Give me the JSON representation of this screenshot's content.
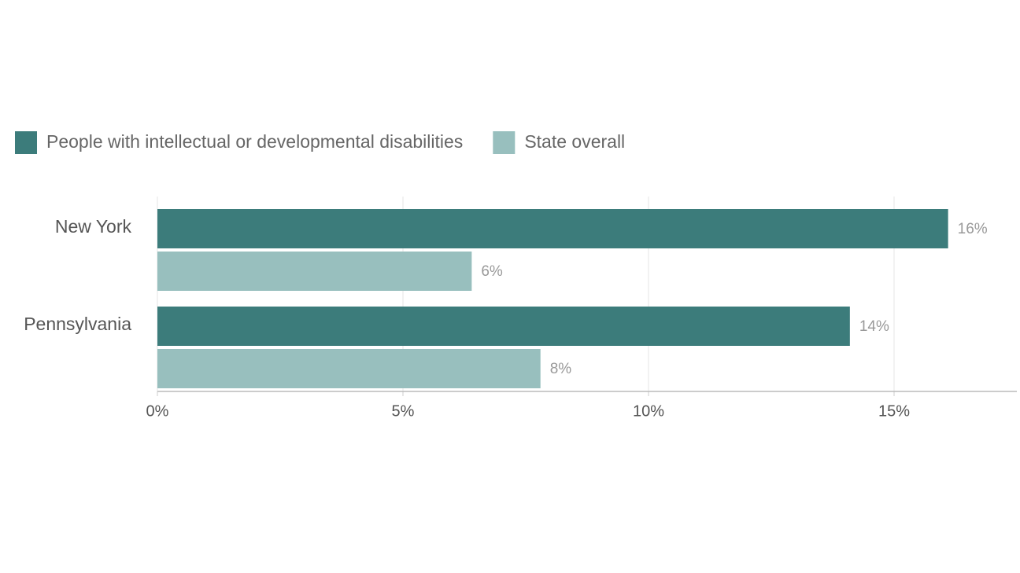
{
  "chart_data": {
    "type": "bar",
    "orientation": "horizontal",
    "categories": [
      "New York",
      "Pennsylvania"
    ],
    "series": [
      {
        "name": "People with intellectual or developmental disabilities",
        "color": "#3c7c7b",
        "values": [
          16.1,
          14.1
        ],
        "value_labels": [
          "16%",
          "14%"
        ]
      },
      {
        "name": "State overall",
        "color": "#98bfbe",
        "values": [
          6.4,
          7.8
        ],
        "value_labels": [
          "6%",
          "8%"
        ]
      }
    ],
    "xlim": [
      0,
      17.5
    ],
    "xticks": [
      {
        "value": 0,
        "label": "0%"
      },
      {
        "value": 5,
        "label": "5%"
      },
      {
        "value": 10,
        "label": "10%"
      },
      {
        "value": 15,
        "label": "15%"
      }
    ],
    "grid": true
  }
}
